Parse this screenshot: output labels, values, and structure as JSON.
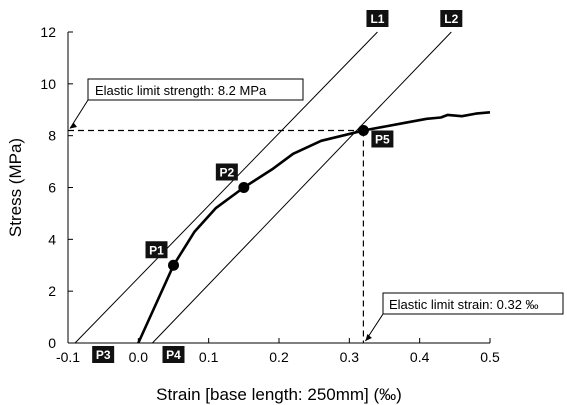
{
  "chart_data": {
    "type": "line",
    "xlabel": "Strain [base length: 250mm] (‰)",
    "ylabel": "Stress (MPa)",
    "xlim": [
      -0.1,
      0.5
    ],
    "ylim": [
      0,
      12
    ],
    "xticks": [
      -0.1,
      0.0,
      0.1,
      0.2,
      0.3,
      0.4,
      0.5
    ],
    "xtick_labels": [
      "-0.1",
      "0.0",
      "0.1",
      "0.2",
      "0.3",
      "0.4",
      "0.5"
    ],
    "yticks": [
      0,
      2,
      4,
      6,
      8,
      10,
      12
    ],
    "ytick_labels": [
      "0",
      "2",
      "4",
      "6",
      "8",
      "10",
      "12"
    ],
    "grid": false,
    "series": [
      {
        "values_kind": "stress-strain curve",
        "x": [
          0.0,
          0.02,
          0.05,
          0.08,
          0.11,
          0.15,
          0.19,
          0.22,
          0.26,
          0.29,
          0.32,
          0.35,
          0.38,
          0.41,
          0.43,
          0.44,
          0.46,
          0.48,
          0.5
        ],
        "y": [
          0.0,
          1.2,
          3.0,
          4.3,
          5.2,
          6.0,
          6.7,
          7.3,
          7.8,
          8.0,
          8.2,
          8.35,
          8.5,
          8.65,
          8.7,
          8.8,
          8.75,
          8.85,
          8.9
        ]
      }
    ],
    "lines": [
      {
        "label": "L1",
        "from": [
          -0.09,
          0
        ],
        "to": [
          0.34,
          12
        ]
      },
      {
        "label": "L2",
        "from": [
          0.02,
          0
        ],
        "to": [
          0.445,
          12
        ]
      }
    ],
    "points": [
      {
        "label": "P1",
        "x": 0.05,
        "y": 3.0
      },
      {
        "label": "P2",
        "x": 0.15,
        "y": 6.0
      },
      {
        "label": "P5",
        "x": 0.32,
        "y": 8.2
      }
    ],
    "axis_markers": [
      {
        "label": "P3",
        "x": -0.05
      },
      {
        "label": "P4",
        "x": 0.05
      }
    ],
    "guides": {
      "elastic_stress": 8.2,
      "elastic_strain": 0.32
    },
    "annotations": [
      {
        "id": "strength",
        "text": "Elastic limit strength: 8.2 MPa"
      },
      {
        "id": "strain",
        "text": "Elastic limit strain: 0.32 ‰"
      }
    ]
  }
}
